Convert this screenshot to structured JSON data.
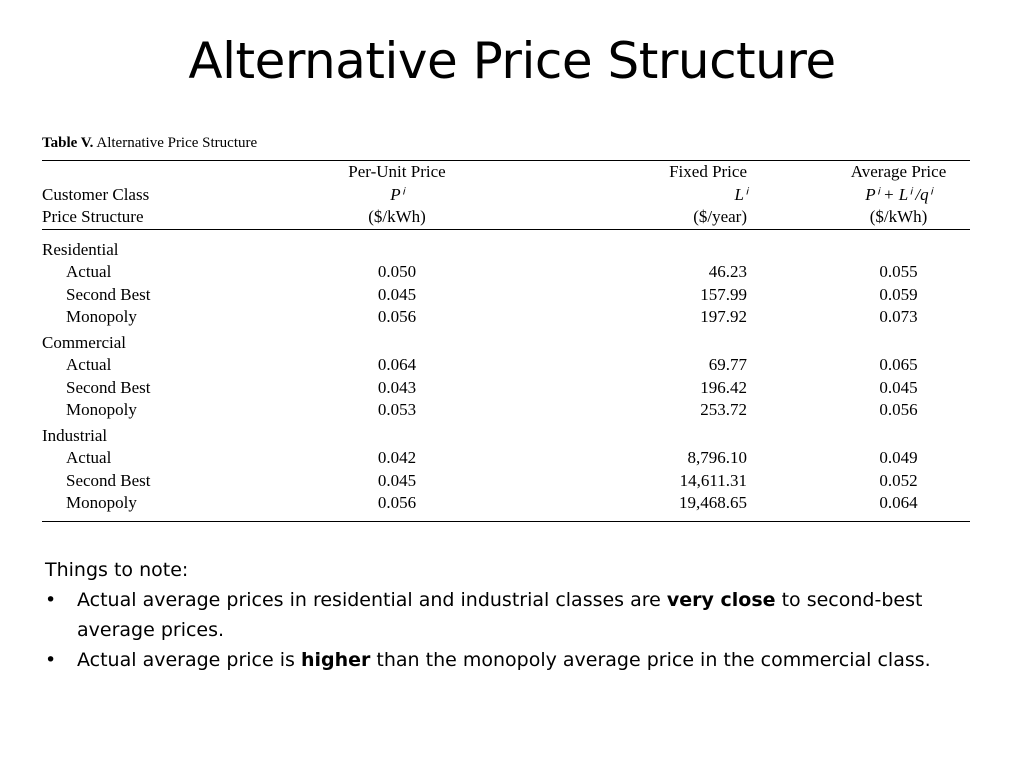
{
  "slide": {
    "title": "Alternative Price Structure"
  },
  "table": {
    "caption_prefix": "Table V.",
    "caption_text": "Alternative Price Structure",
    "header": {
      "col0_line1": "Customer Class",
      "col0_line2": "Price Structure",
      "col1_line1": "Per-Unit Price",
      "col1_line2": "Pⁱ",
      "col1_line3": "($/kWh)",
      "col2_line1": "Fixed Price",
      "col2_line2": "Lⁱ",
      "col2_line3": "($/year)",
      "col3_line1": "Average Price",
      "col3_line2": "Pⁱ + Lⁱ /qⁱ",
      "col3_line3": "($/kWh)"
    },
    "groups": [
      {
        "name": "Residential",
        "rows": [
          {
            "label": "Actual",
            "per_unit": "0.050",
            "fixed": "46.23",
            "average": "0.055"
          },
          {
            "label": "Second Best",
            "per_unit": "0.045",
            "fixed": "157.99",
            "average": "0.059"
          },
          {
            "label": "Monopoly",
            "per_unit": "0.056",
            "fixed": "197.92",
            "average": "0.073"
          }
        ]
      },
      {
        "name": "Commercial",
        "rows": [
          {
            "label": "Actual",
            "per_unit": "0.064",
            "fixed": "69.77",
            "average": "0.065"
          },
          {
            "label": "Second Best",
            "per_unit": "0.043",
            "fixed": "196.42",
            "average": "0.045"
          },
          {
            "label": "Monopoly",
            "per_unit": "0.053",
            "fixed": "253.72",
            "average": "0.056"
          }
        ]
      },
      {
        "name": "Industrial",
        "rows": [
          {
            "label": "Actual",
            "per_unit": "0.042",
            "fixed": "8,796.10",
            "average": "0.049"
          },
          {
            "label": "Second Best",
            "per_unit": "0.045",
            "fixed": "14,611.31",
            "average": "0.052"
          },
          {
            "label": "Monopoly",
            "per_unit": "0.056",
            "fixed": "19,468.65",
            "average": "0.064"
          }
        ]
      }
    ]
  },
  "notes": {
    "heading": "Things to note:",
    "bullet_symbol": "•",
    "items": [
      {
        "before": "Actual average prices in residential and industrial classes are ",
        "bold": "very close",
        "after": " to second-best average prices."
      },
      {
        "before": "Actual average price is ",
        "bold": "higher",
        "after": " than the monopoly average price in the commercial class."
      }
    ]
  }
}
